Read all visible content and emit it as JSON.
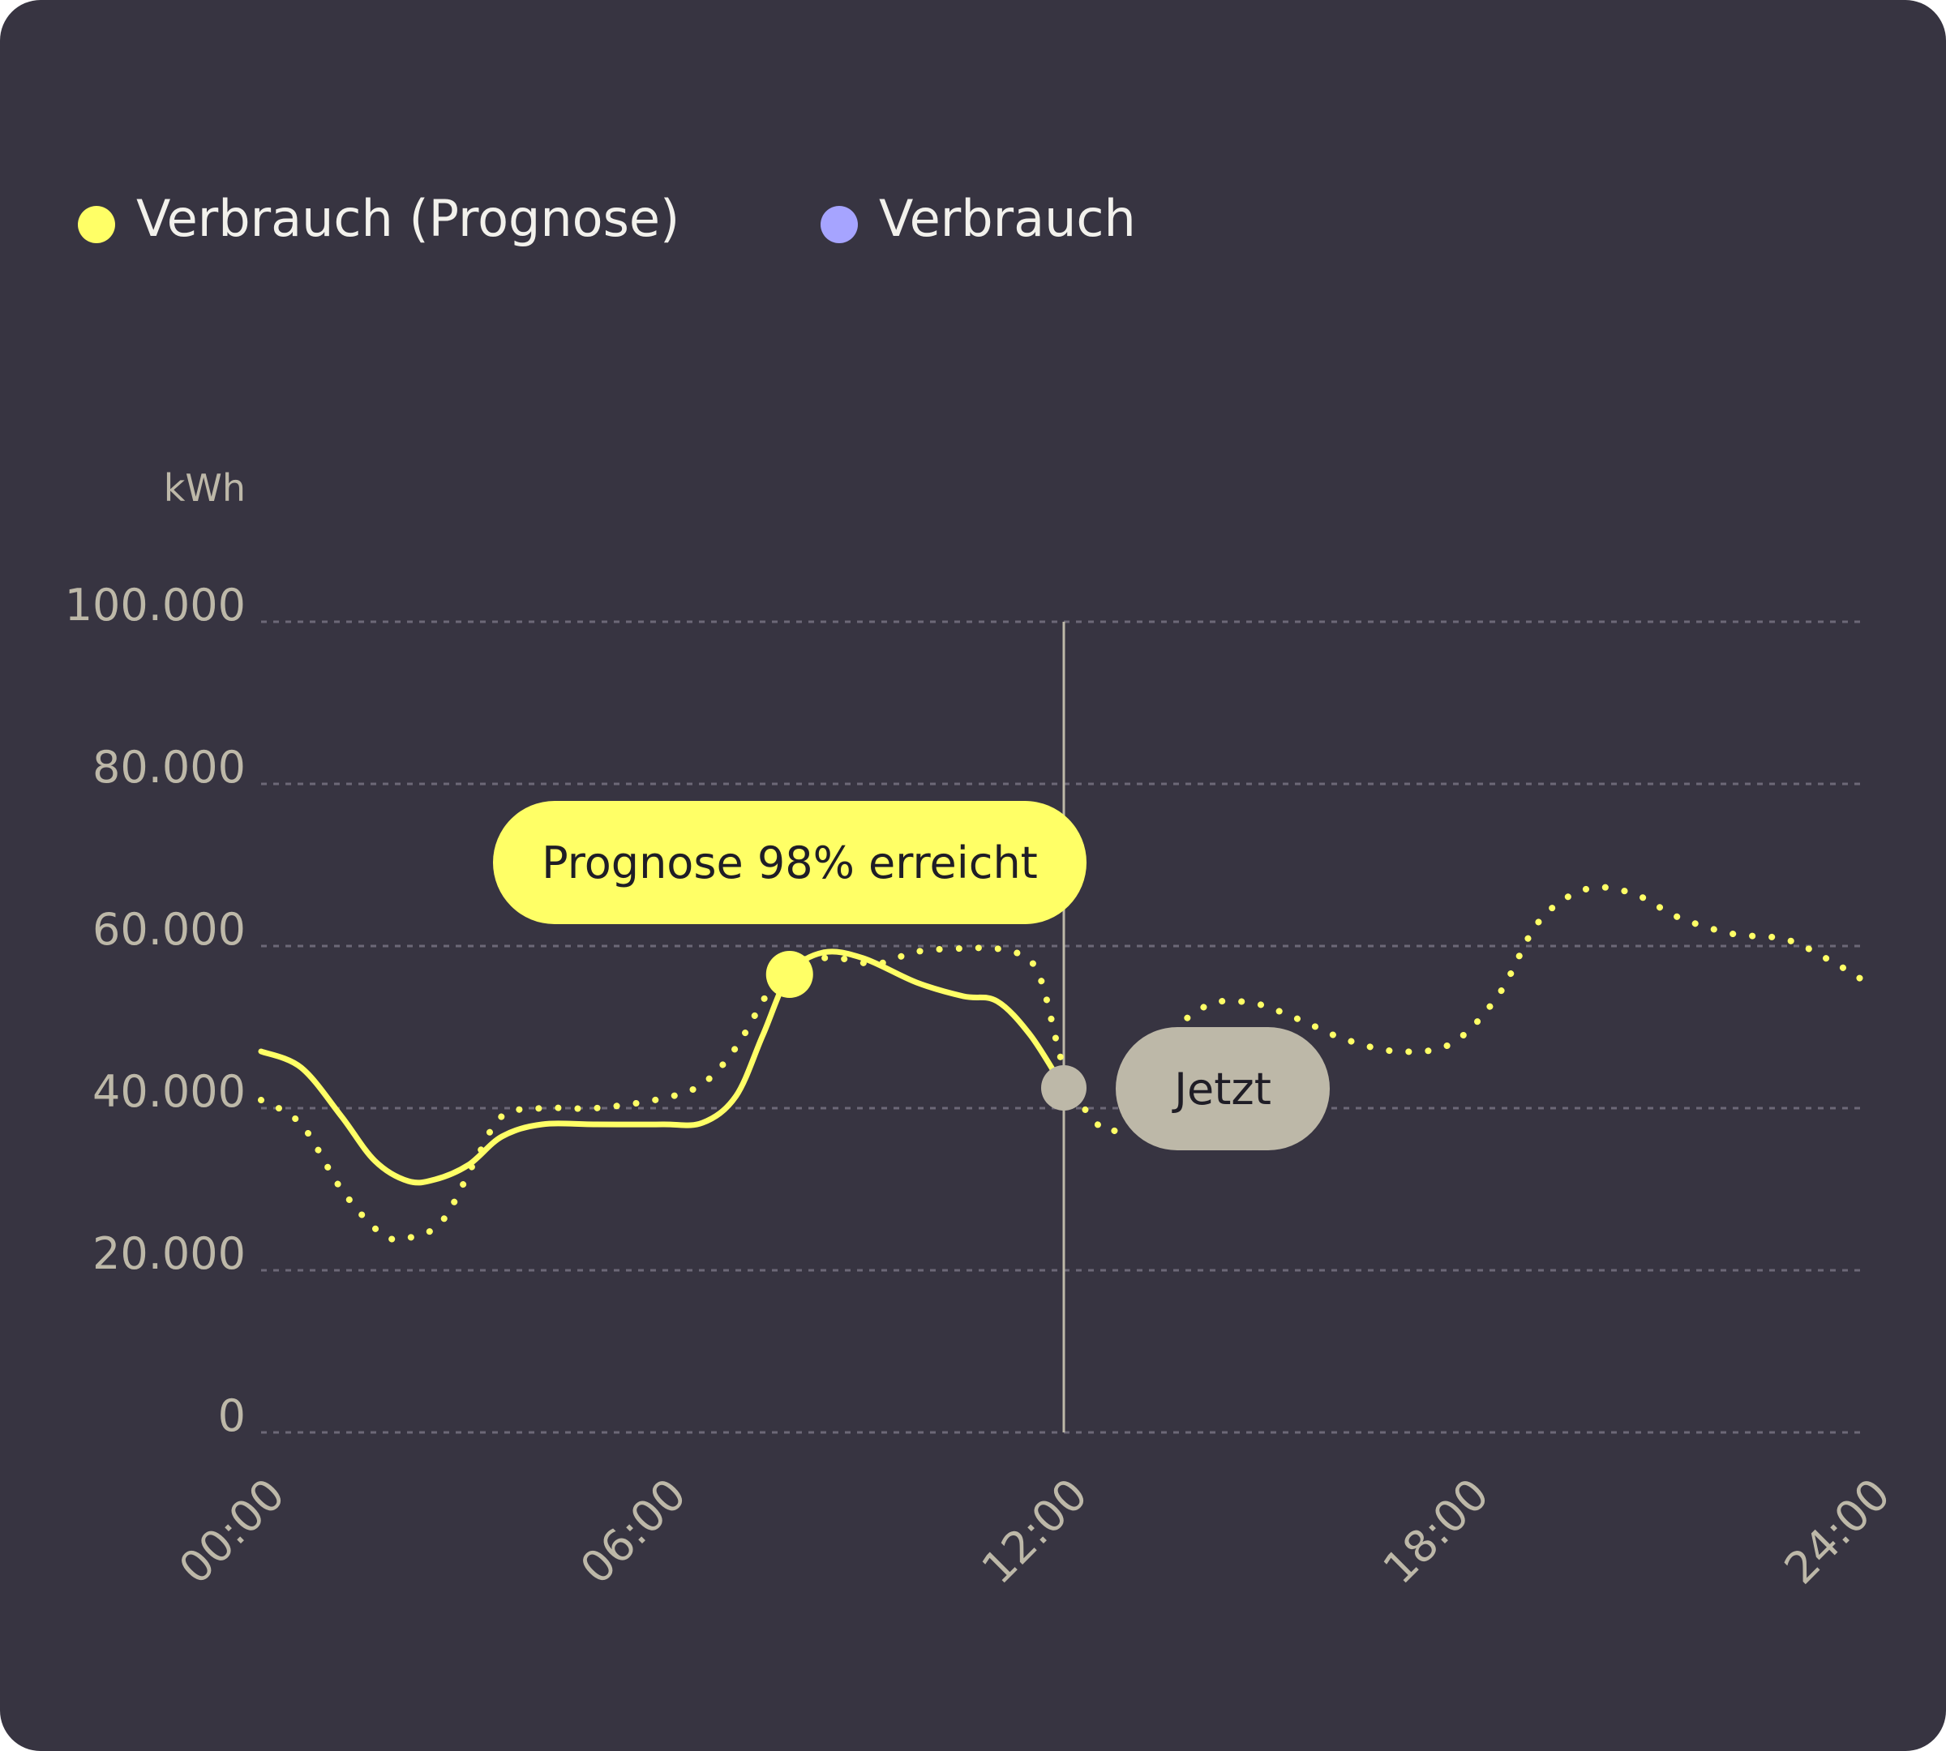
{
  "legend": {
    "items": [
      {
        "label": "Verbrauch (Prognose)",
        "color": "#ffff66"
      },
      {
        "label": "Verbrauch",
        "color": "#a6a4ff"
      }
    ]
  },
  "annotations": {
    "reached_label": "Prognose 98% erreicht",
    "now_label": "Jetzt"
  },
  "colors": {
    "background": "#373441",
    "line": "#ffff66",
    "now_marker": "#bdb8a8",
    "grid": "#6c6877"
  },
  "chart_data": {
    "type": "line",
    "ylabel": "kWh",
    "xlabel": "",
    "ylim": [
      0,
      100000
    ],
    "xlim": [
      0,
      24
    ],
    "yticks": [
      0,
      20000,
      40000,
      60000,
      80000,
      100000
    ],
    "ytick_labels": [
      "0",
      "20.000",
      "40.000",
      "60.000",
      "80.000",
      "100.000"
    ],
    "xticks": [
      0,
      6,
      12,
      18,
      24
    ],
    "xtick_labels": [
      "00:00",
      "06:00",
      "12:00",
      "18:00",
      "24:00"
    ],
    "grid": true,
    "legend_position": "top-left",
    "now_x": 12,
    "series": [
      {
        "name": "Verbrauch",
        "style": "solid",
        "x": [
          0,
          0.6,
          1.2,
          1.7,
          2.2,
          2.6,
          3.1,
          3.6,
          4.2,
          5,
          6,
          6.6,
          7.1,
          7.5,
          7.9,
          8.4,
          9,
          9.8,
          10.5,
          11,
          11.5,
          12
        ],
        "y": [
          47000,
          45000,
          39000,
          33500,
          31000,
          31200,
          33000,
          36500,
          38000,
          38000,
          38000,
          38200,
          41500,
          49000,
          56500,
          59200,
          58500,
          55500,
          53800,
          53200,
          49000,
          42500
        ]
      },
      {
        "name": "Verbrauch (Prognose)",
        "style": "dotted",
        "x": [
          0,
          0.6,
          1.2,
          1.8,
          2.2,
          2.7,
          3.2,
          3.6,
          4.2,
          5,
          6,
          6.6,
          7.1,
          7.6,
          8,
          8.6,
          9.2,
          9.8,
          10.5,
          11.1,
          11.6,
          12,
          12.4,
          12.8,
          13.3,
          14.1,
          14.8,
          15.5,
          16.2,
          17,
          17.8,
          18.5,
          19.1,
          19.8,
          20.5,
          21.2,
          22,
          22.8,
          23.5,
          24
        ],
        "y": [
          41000,
          38000,
          30000,
          24500,
          24000,
          26000,
          33500,
          39000,
          40000,
          40000,
          41200,
          43000,
          47500,
          54500,
          58000,
          58500,
          57800,
          59300,
          59700,
          59500,
          57000,
          45000,
          39000,
          37500,
          46500,
          52500,
          53000,
          51000,
          48500,
          47000,
          48000,
          54000,
          63000,
          67000,
          66500,
          63500,
          61500,
          60800,
          58000,
          55500
        ]
      }
    ]
  }
}
